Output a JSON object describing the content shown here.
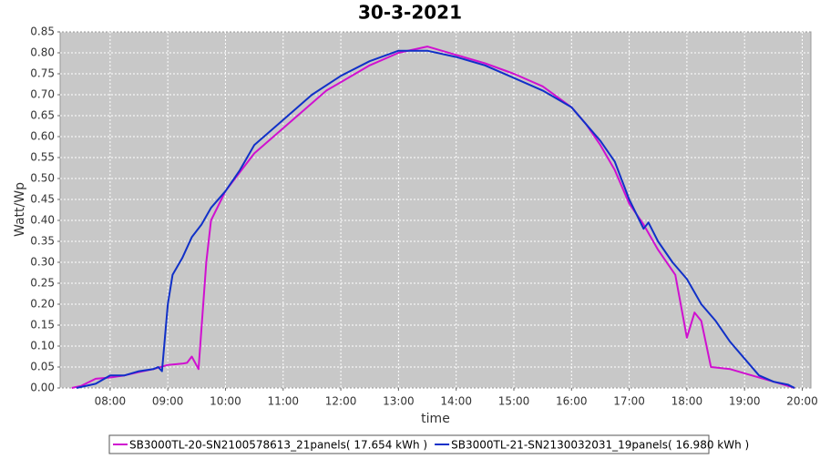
{
  "chart_data": {
    "type": "line",
    "title": "30-3-2021",
    "x_label": "time",
    "y_label": "Watt/Wp",
    "xlim": [
      "07:08",
      "20:09"
    ],
    "xticks": [
      "08:00",
      "09:00",
      "10:00",
      "11:00",
      "12:00",
      "13:00",
      "14:00",
      "15:00",
      "16:00",
      "17:00",
      "18:00",
      "19:00",
      "20:00"
    ],
    "ylim": [
      0,
      0.85
    ],
    "yticks": [
      {
        "value": 0,
        "label": "0.00"
      },
      0.05,
      {
        "value": 0.1,
        "label": "0.10"
      },
      0.15,
      {
        "value": 0.2,
        "label": "0.20"
      },
      0.25,
      {
        "value": 0.3,
        "label": "0.30"
      },
      0.35,
      {
        "value": 0.4,
        "label": "0.40"
      },
      0.45,
      {
        "value": 0.5,
        "label": "0.50"
      },
      0.55,
      {
        "value": 0.6,
        "label": "0.60"
      },
      0.65,
      {
        "value": 0.7,
        "label": "0.70"
      },
      0.75,
      {
        "value": 0.8,
        "label": "0.80"
      },
      0.85
    ],
    "grid": true,
    "series": [
      {
        "name": "SB3000TL-20-SN2100578613_21panels( 17.654 kWh )",
        "color": "#d010d0",
        "x": [
          "07:20",
          "07:30",
          "07:45",
          "08:00",
          "08:15",
          "08:30",
          "08:45",
          "09:00",
          "09:15",
          "09:20",
          "09:25",
          "09:32",
          "09:40",
          "09:45",
          "10:00",
          "10:30",
          "11:00",
          "11:30",
          "11:45",
          "12:00",
          "12:30",
          "13:00",
          "13:30",
          "14:00",
          "14:30",
          "15:00",
          "15:30",
          "16:00",
          "16:15",
          "16:30",
          "16:45",
          "17:00",
          "17:15",
          "17:30",
          "17:48",
          "18:00",
          "18:08",
          "18:15",
          "18:25",
          "18:45",
          "19:00",
          "19:30",
          "19:45",
          "19:52"
        ],
        "values": [
          0.0,
          0.005,
          0.022,
          0.025,
          0.03,
          0.038,
          0.045,
          0.055,
          0.058,
          0.06,
          0.075,
          0.045,
          0.3,
          0.4,
          0.47,
          0.56,
          0.62,
          0.68,
          0.71,
          0.73,
          0.77,
          0.8,
          0.815,
          0.795,
          0.775,
          0.75,
          0.72,
          0.67,
          0.63,
          0.58,
          0.52,
          0.44,
          0.39,
          0.33,
          0.27,
          0.12,
          0.18,
          0.16,
          0.05,
          0.045,
          0.035,
          0.015,
          0.005,
          0.0
        ]
      },
      {
        "name": "SB3000TL-21-SN2130032031_19panels( 16.980 kWh )",
        "color": "#1030c8",
        "x": [
          "07:25",
          "07:45",
          "08:00",
          "08:15",
          "08:30",
          "08:45",
          "08:50",
          "08:54",
          "09:00",
          "09:05",
          "09:15",
          "09:25",
          "09:35",
          "09:45",
          "10:00",
          "10:15",
          "10:30",
          "11:00",
          "11:30",
          "12:00",
          "12:30",
          "13:00",
          "13:30",
          "14:00",
          "14:30",
          "15:00",
          "15:30",
          "16:00",
          "16:15",
          "16:30",
          "16:45",
          "17:00",
          "17:15",
          "17:20",
          "17:30",
          "17:45",
          "18:00",
          "18:15",
          "18:30",
          "18:45",
          "19:00",
          "19:15",
          "19:30",
          "19:45",
          "19:52"
        ],
        "values": [
          0.0,
          0.01,
          0.03,
          0.03,
          0.04,
          0.045,
          0.05,
          0.04,
          0.2,
          0.27,
          0.31,
          0.36,
          0.39,
          0.43,
          0.47,
          0.52,
          0.58,
          0.64,
          0.7,
          0.745,
          0.78,
          0.805,
          0.805,
          0.79,
          0.77,
          0.74,
          0.71,
          0.67,
          0.63,
          0.59,
          0.54,
          0.45,
          0.38,
          0.395,
          0.35,
          0.3,
          0.26,
          0.2,
          0.16,
          0.11,
          0.07,
          0.03,
          0.015,
          0.008,
          0.0
        ]
      }
    ]
  }
}
